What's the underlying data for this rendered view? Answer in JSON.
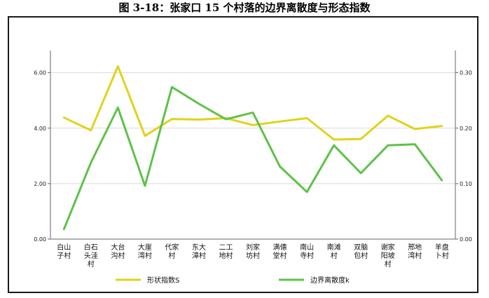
{
  "figure_title": "图 3-18：张家口 15 个村落的边界离散度与形态指数",
  "colors": {
    "shape": "#e2d21c",
    "boundary": "#5ec248",
    "axis": "#666666",
    "grid": "#d9d9d9"
  },
  "chart_data": {
    "type": "line",
    "categories": [
      [
        "白山",
        "子村"
      ],
      [
        "白石",
        "头洼",
        "村"
      ],
      [
        "大台",
        "沟村"
      ],
      [
        "大崖",
        "湾村"
      ],
      [
        "代家",
        "村"
      ],
      [
        "东大",
        "漳村"
      ],
      [
        "二工",
        "地村"
      ],
      [
        "刘家",
        "坊村"
      ],
      [
        "满僡",
        "堂村"
      ],
      [
        "南山",
        "寺村"
      ],
      [
        "南滩",
        "村"
      ],
      [
        "双脑",
        "包村"
      ],
      [
        "谢家",
        "阳坡",
        "村"
      ],
      [
        "邢地",
        "湾村"
      ],
      [
        "羊盘",
        "卜村"
      ]
    ],
    "series": [
      {
        "name": "形状指数S",
        "axis": "left",
        "color": "#e2d21c",
        "values": [
          4.38,
          3.92,
          6.23,
          3.72,
          4.33,
          4.31,
          4.36,
          4.11,
          4.24,
          4.36,
          3.59,
          3.61,
          4.45,
          3.97,
          4.08
        ]
      },
      {
        "name": "边界离散度k",
        "axis": "right",
        "color": "#5ec248",
        "values": [
          0.018,
          0.138,
          0.237,
          0.096,
          0.274,
          0.244,
          0.216,
          0.228,
          0.131,
          0.085,
          0.169,
          0.119,
          0.169,
          0.171,
          0.106
        ]
      }
    ],
    "y_left": {
      "min": 0,
      "max": 6.8,
      "ticks": [
        "0.00",
        "2.00",
        "4.00",
        "6.00"
      ],
      "tick_values": [
        0,
        2,
        4,
        6
      ]
    },
    "y_right": {
      "min": 0,
      "max": 0.34,
      "ticks": [
        "0.00",
        "0.10",
        "0.20",
        "0.30"
      ],
      "tick_values": [
        0,
        0.1,
        0.2,
        0.3
      ]
    },
    "grid": "horizontal",
    "legend_position": "bottom"
  }
}
